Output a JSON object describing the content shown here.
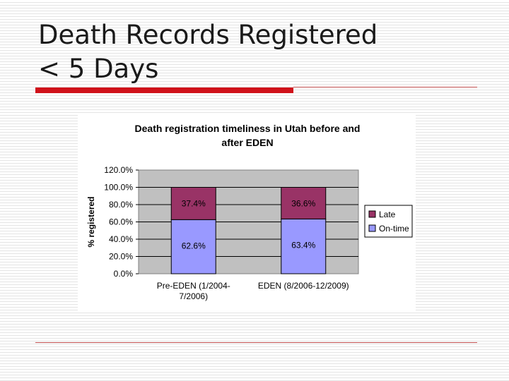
{
  "slide": {
    "title_line1": "Death Records Registered",
    "title_line2": "< 5 Days"
  },
  "colors": {
    "accent_red": "#d0121b",
    "late": "#993366",
    "on_time": "#9999ff",
    "plot_bg": "#c0c0c0"
  },
  "chart_data": {
    "type": "bar",
    "stacked": true,
    "title": "Death registration timeliness in Utah before and after EDEN",
    "title_lines": [
      "Death registration timeliness in Utah before and",
      "after EDEN"
    ],
    "ylabel": "% registered",
    "xlabel": "",
    "ylim": [
      0,
      120
    ],
    "y_ticks": [
      "0.0%",
      "20.0%",
      "40.0%",
      "60.0%",
      "80.0%",
      "100.0%",
      "120.0%"
    ],
    "categories": [
      "Pre-EDEN (1/2004-7/2006)",
      "EDEN (8/2006-12/2009)"
    ],
    "category_lines": [
      [
        "Pre-EDEN (1/2004-",
        "7/2006)"
      ],
      [
        "EDEN (8/2006-12/2009)"
      ]
    ],
    "series": [
      {
        "name": "On-time",
        "values": [
          62.6,
          63.4
        ],
        "labels": [
          "62.6%",
          "63.4%"
        ],
        "color": "#9999ff"
      },
      {
        "name": "Late",
        "values": [
          37.4,
          36.6
        ],
        "labels": [
          "37.4%",
          "36.6%"
        ],
        "color": "#993366"
      }
    ],
    "legend_order": [
      "Late",
      "On-time"
    ],
    "legend_position": "right",
    "grid": true
  }
}
